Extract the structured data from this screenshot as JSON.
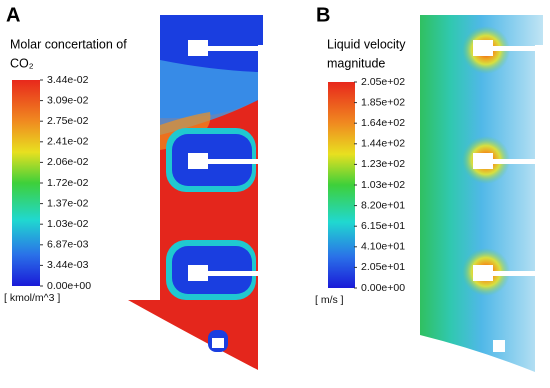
{
  "panels": [
    {
      "label": "A",
      "title_lines": [
        "Molar concertation of",
        "CO₂"
      ],
      "ticks": [
        "3.44e-02",
        "3.09e-02",
        "2.75e-02",
        "2.41e-02",
        "2.06e-02",
        "1.72e-02",
        "1.37e-02",
        "1.03e-02",
        "6.87e-03",
        "3.44e-03",
        "0.00e+00"
      ],
      "unit": "[ kmol/m^3 ]"
    },
    {
      "label": "B",
      "title_lines": [
        "Liquid velocity",
        "magnitude"
      ],
      "ticks": [
        "2.05e+02",
        "1.85e+02",
        "1.64e+02",
        "1.44e+02",
        "1.23e+02",
        "1.03e+02",
        "8.20e+01",
        "6.15e+01",
        "4.10e+01",
        "2.05e+01",
        "0.00e+00"
      ],
      "unit": "[ m/s ]"
    }
  ]
}
